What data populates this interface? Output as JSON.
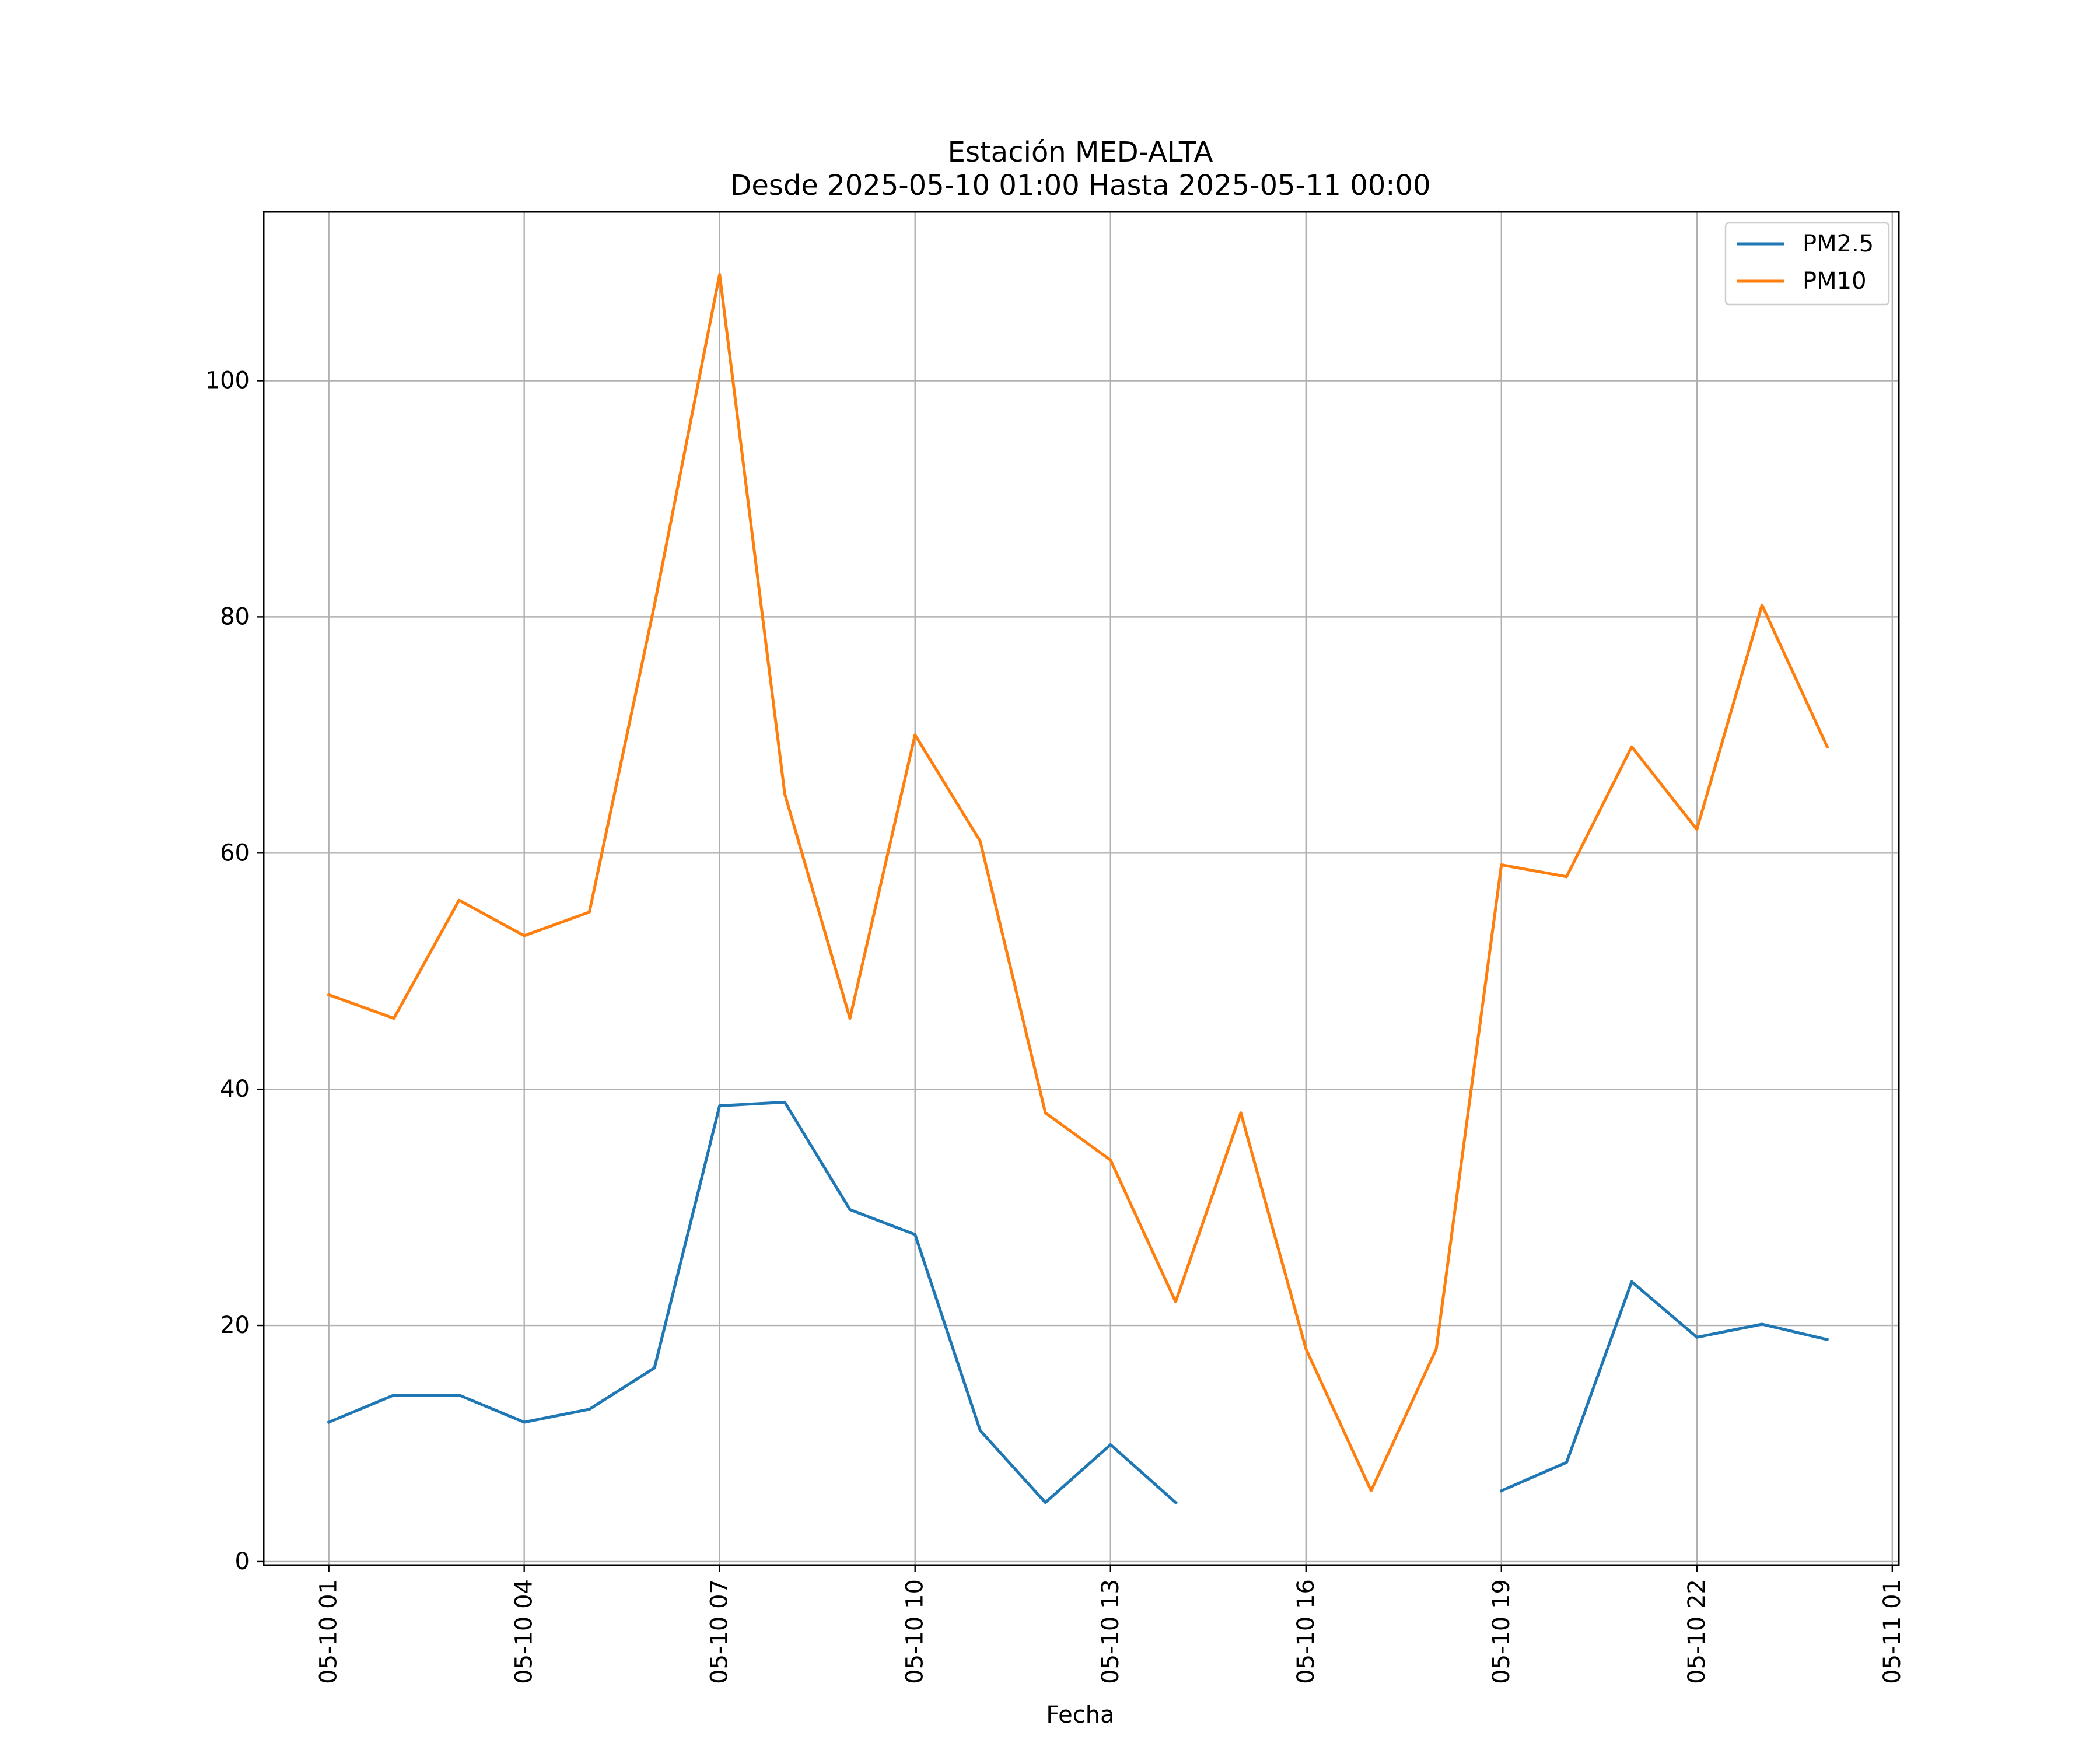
{
  "chart_data": {
    "type": "line",
    "title": "Estación MED-ALTA",
    "subtitle": "Desde 2025-05-10 01:00 Hasta 2025-05-11 00:00",
    "xlabel": "Fecha",
    "ylabel": "",
    "x": [
      "2025-05-10 01:00",
      "2025-05-10 02:00",
      "2025-05-10 03:00",
      "2025-05-10 04:00",
      "2025-05-10 05:00",
      "2025-05-10 06:00",
      "2025-05-10 07:00",
      "2025-05-10 08:00",
      "2025-05-10 09:00",
      "2025-05-10 10:00",
      "2025-05-10 11:00",
      "2025-05-10 12:00",
      "2025-05-10 13:00",
      "2025-05-10 14:00",
      "2025-05-10 15:00",
      "2025-05-10 16:00",
      "2025-05-10 17:00",
      "2025-05-10 18:00",
      "2025-05-10 19:00",
      "2025-05-10 20:00",
      "2025-05-10 21:00",
      "2025-05-10 22:00",
      "2025-05-10 23:00",
      "2025-05-11 00:00"
    ],
    "xlim": [
      "2025-05-10 00:00",
      "2025-05-11 01:06"
    ],
    "ylim": [
      -0.3,
      114.3
    ],
    "x_ticks": [
      "2025-05-10 01:00",
      "2025-05-10 04:00",
      "2025-05-10 07:00",
      "2025-05-10 10:00",
      "2025-05-10 13:00",
      "2025-05-10 16:00",
      "2025-05-10 19:00",
      "2025-05-10 22:00",
      "2025-05-11 01:00"
    ],
    "x_tick_labels": [
      "05-10 01",
      "05-10 04",
      "05-10 07",
      "05-10 10",
      "05-10 13",
      "05-10 16",
      "05-10 19",
      "05-10 22",
      "05-11 01"
    ],
    "y_ticks": [
      0,
      20,
      40,
      60,
      80,
      100
    ],
    "y_tick_labels": [
      "0",
      "20",
      "40",
      "60",
      "80",
      "100"
    ],
    "grid": true,
    "legend_position": "top-right",
    "series": [
      {
        "name": "PM2.5",
        "color": "#1f77b4",
        "values": [
          11.8,
          14.1,
          14.1,
          11.8,
          12.9,
          16.4,
          38.6,
          38.9,
          29.8,
          27.7,
          11.1,
          5.0,
          9.9,
          5.0,
          null,
          null,
          null,
          null,
          6.0,
          8.4,
          23.7,
          19.0,
          20.1,
          18.8
        ]
      },
      {
        "name": "PM10",
        "color": "#ff7f0e",
        "values": [
          48,
          46,
          56,
          53,
          55,
          81,
          109,
          65,
          46,
          70,
          61,
          38,
          34,
          22,
          38,
          18,
          6,
          18,
          59,
          58,
          69,
          62,
          81,
          69
        ]
      }
    ]
  }
}
